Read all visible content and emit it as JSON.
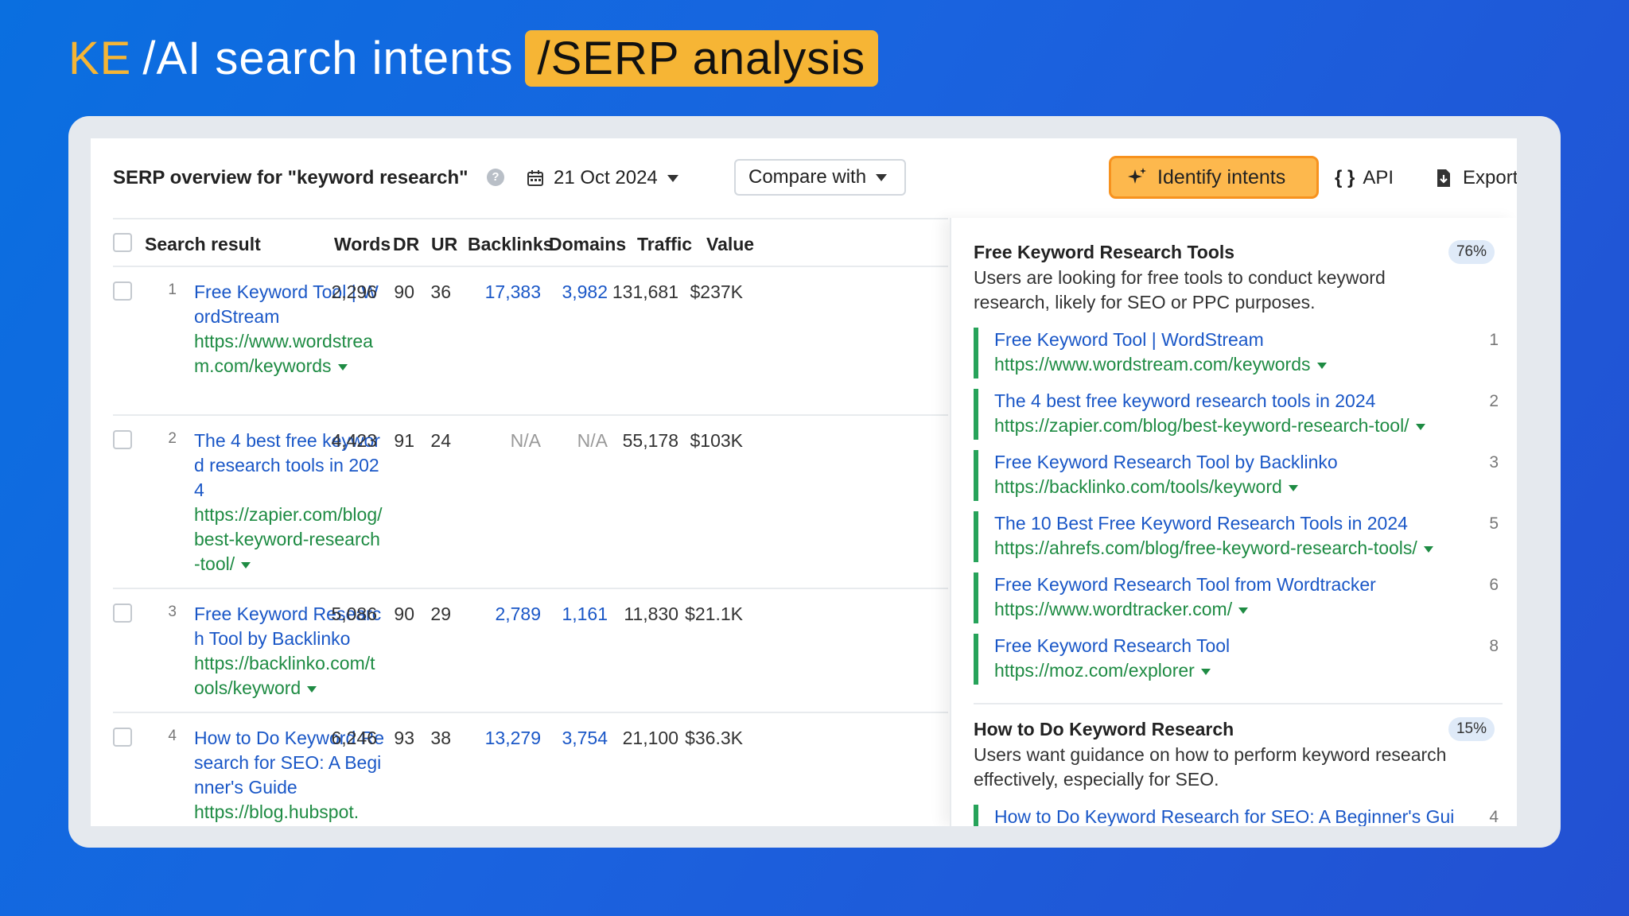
{
  "headline": {
    "ke": "KE",
    "part1": "/AI search intents",
    "part2": "/SERP analysis"
  },
  "toolbar": {
    "title": "SERP overview for \"keyword research\"",
    "help": "?",
    "date": "21 Oct 2024",
    "compare": "Compare with",
    "identify": "Identify intents",
    "api": "API",
    "export": "Export"
  },
  "table": {
    "headers": {
      "result": "Search result",
      "words": "Words",
      "dr": "DR",
      "ur": "UR",
      "backlinks": "Backlinks",
      "domains": "Domains",
      "traffic": "Traffic",
      "value": "Value"
    },
    "rows": [
      {
        "rank": "1",
        "title": "Free Keyword Tool | WordStream",
        "url": "https://www.wordstream.com/keywords",
        "words": "2,296",
        "dr": "90",
        "ur": "36",
        "backlinks": "17,383",
        "domains": "3,982",
        "traffic": "131,681",
        "value": "$237K"
      },
      {
        "rank": "2",
        "title": "The 4 best free keyword research tools in 2024",
        "url": "https://zapier.com/blog/best-keyword-research-tool/",
        "words": "4,423",
        "dr": "91",
        "ur": "24",
        "backlinks": "N/A",
        "domains": "N/A",
        "traffic": "55,178",
        "value": "$103K"
      },
      {
        "rank": "3",
        "title": "Free Keyword Research Tool by Backlinko",
        "url": "https://backlinko.com/tools/keyword",
        "words": "5,086",
        "dr": "90",
        "ur": "29",
        "backlinks": "2,789",
        "domains": "1,161",
        "traffic": "11,830",
        "value": "$21.1K"
      },
      {
        "rank": "4",
        "title": "How to Do Keyword Research for SEO: A Beginner's Guide",
        "url": "https://blog.hubspot.",
        "words": "6,246",
        "dr": "93",
        "ur": "38",
        "backlinks": "13,279",
        "domains": "3,754",
        "traffic": "21,100",
        "value": "$36.3K"
      }
    ]
  },
  "intents": [
    {
      "title": "Free Keyword Research Tools",
      "percent": "76%",
      "desc": "Users are looking for free tools to conduct keyword research, likely for SEO or PPC purposes.",
      "sources": [
        {
          "title": "Free Keyword Tool | WordStream",
          "url": "https://www.wordstream.com/keywords",
          "rank": "1"
        },
        {
          "title": "The 4 best free keyword research tools in 2024",
          "url": "https://zapier.com/blog/best-keyword-research-tool/",
          "rank": "2"
        },
        {
          "title": "Free Keyword Research Tool by Backlinko",
          "url": "https://backlinko.com/tools/keyword",
          "rank": "3"
        },
        {
          "title": "The 10 Best Free Keyword Research Tools in 2024",
          "url": "https://ahrefs.com/blog/free-keyword-research-tools/",
          "rank": "5"
        },
        {
          "title": "Free Keyword Research Tool from Wordtracker",
          "url": "https://www.wordtracker.com/",
          "rank": "6"
        },
        {
          "title": "Free Keyword Research Tool",
          "url": "https://moz.com/explorer",
          "rank": "8"
        }
      ]
    },
    {
      "title": "How to Do Keyword Research",
      "percent": "15%",
      "desc": "Users want guidance on how to perform keyword research effectively, especially for SEO.",
      "sources": [
        {
          "title": "How to Do Keyword Research for SEO: A Beginner's Gui",
          "url": "",
          "rank": "4"
        }
      ]
    }
  ],
  "colors": {
    "accent": "#f6b535",
    "link": "#1a57c7",
    "url": "#1e8b43",
    "intent_bar": "#27a35a"
  }
}
